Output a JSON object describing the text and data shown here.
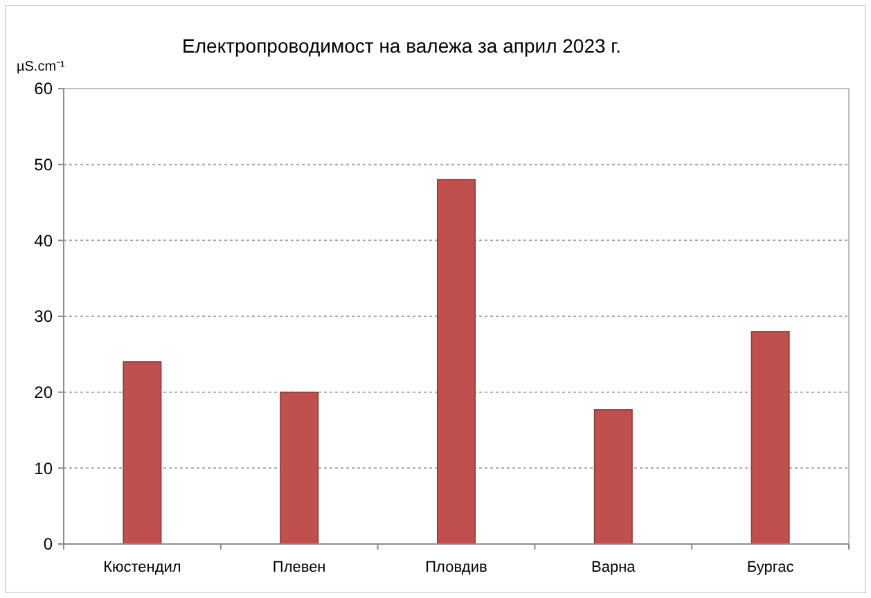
{
  "chart_data": {
    "type": "bar",
    "title": "Електропроводимост на валежа за април 2023 г.",
    "ylabel": "µS.cm⁻¹",
    "categories": [
      "Кюстендил",
      "Плевен",
      "Пловдив",
      "Варна",
      "Бургас"
    ],
    "values": [
      24,
      20,
      48,
      17.7,
      28
    ],
    "color": "#c0504d",
    "ylim": [
      0,
      60
    ],
    "yticks": [
      0,
      10,
      20,
      30,
      40,
      50,
      60
    ],
    "grid": "y"
  }
}
